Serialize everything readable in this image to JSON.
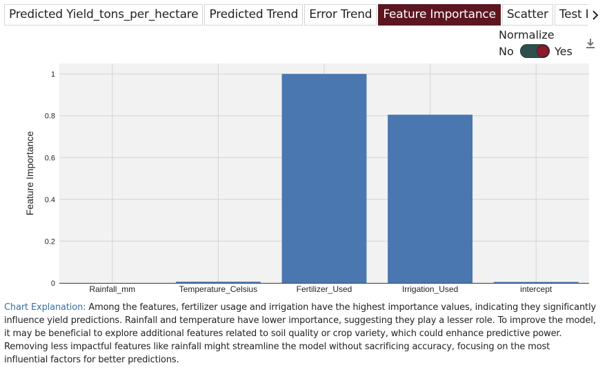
{
  "tabs": [
    {
      "label": "Predicted Yield_tons_per_hectare",
      "active": false
    },
    {
      "label": "Predicted Trend",
      "active": false
    },
    {
      "label": "Error Trend",
      "active": false
    },
    {
      "label": "Feature Importance",
      "active": true
    },
    {
      "label": "Scatter",
      "active": false
    },
    {
      "label": "Test Re",
      "active": false
    }
  ],
  "tab_next_icon": "chevron-right-icon",
  "normalize": {
    "label": "Normalize",
    "off_label": "No",
    "on_label": "Yes",
    "value": true
  },
  "download_icon": "download-icon",
  "colors": {
    "accent": "#5c1620",
    "bar": "#4a77b0",
    "toggle_track": "#2f4f4f",
    "link": "#3a6ea5"
  },
  "chart_data": {
    "type": "bar",
    "categories": [
      "Rainfall_mm",
      "Temperature_Celsius",
      "Fertilizer_Used",
      "Irrigation_Used",
      "intercept"
    ],
    "values": [
      0.0,
      0.006,
      1.0,
      0.805,
      0.004
    ],
    "ylabel": "Feature Importance",
    "xlabel": "",
    "ylim": [
      0,
      1.05
    ],
    "yticks": [
      "0",
      "0.2",
      "0.4",
      "0.6",
      "0.8",
      "1"
    ],
    "ytick_values": [
      0,
      0.2,
      0.4,
      0.6,
      0.8,
      1
    ],
    "grid": true
  },
  "explanation": {
    "lead": "Chart Explanation:",
    "text": "Among the features, fertilizer usage and irrigation have the highest importance values, indicating they significantly influence yield predictions. Rainfall and temperature have lower importance, suggesting they play a lesser role. To improve the model, it may be beneficial to explore additional features related to soil quality or crop variety, which could enhance predictive power. Removing less impactful features like rainfall might streamline the model without sacrificing accuracy, focusing on the most influential factors for better predictions."
  }
}
